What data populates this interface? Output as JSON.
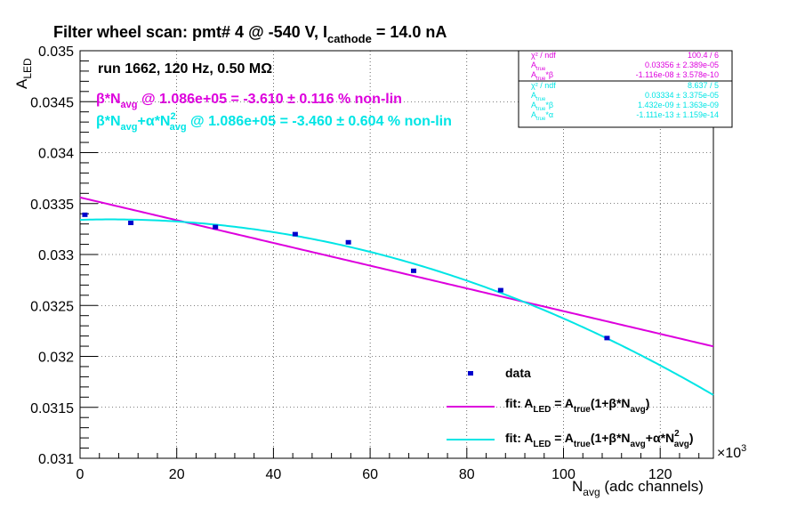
{
  "chart_data": {
    "type": "scatter",
    "title": {
      "main": "Filter wheel scan: pmt#   4 @  -540 V, I",
      "sub": "cathode",
      "tail": " = 14.0 nA"
    },
    "run_label": "run 1662, 120 Hz, 0.50 MΩ",
    "ylabel": {
      "main": "A",
      "sub": "LED"
    },
    "xlabel": {
      "main": "N",
      "sub": "avg",
      "tail": " (adc channels)"
    },
    "x_multiplier": {
      "main": "×10",
      "sup": "3"
    },
    "xlim": [
      0,
      131000
    ],
    "ylim": [
      0.031,
      0.035
    ],
    "x_ticks": [
      0,
      20,
      40,
      60,
      80,
      100,
      120
    ],
    "y_ticks": [
      "0.031",
      "0.0315",
      "0.032",
      "0.0325",
      "0.033",
      "0.0335",
      "0.034",
      "0.0345",
      "0.035"
    ],
    "grid": true,
    "points": {
      "name": "data",
      "color": "#0000cc",
      "x": [
        1000,
        10500,
        28000,
        44500,
        55500,
        69000,
        87000,
        109000
      ],
      "y": [
        0.03339,
        0.03331,
        0.03327,
        0.0332,
        0.03312,
        0.03284,
        0.03265,
        0.03218
      ],
      "err": [
        9e-06,
        6e-06,
        6e-06,
        6e-06,
        6e-06,
        6e-06,
        5e-06,
        6e-06
      ]
    },
    "fit_linear": {
      "color": "#dd00dd",
      "a": 0.03356,
      "b": -1.116e-08
    },
    "fit_quadratic": {
      "color": "#00e5e5",
      "a": 0.03334,
      "b": 1.432e-09,
      "c": -1.111e-13
    },
    "annotation_linear": {
      "p1": "β*N",
      "s1": "avg",
      "p2": " @ 1.086e+05 = -3.610 ± 0.116 % non-lin"
    },
    "annotation_quadratic": {
      "p1": "β*N",
      "s1": "avg",
      "p2": "+α*N",
      "sup": "2",
      "s2": "avg",
      "p3": " @ 1.086e+05 = -3.460 ± 0.604 % non-lin"
    },
    "stats_linear": [
      {
        "label": "χ² / ndf",
        "value": "100.4 / 6"
      },
      {
        "label": "A",
        "sub": "true",
        "value": "0.03356 ± 2.389e-05"
      },
      {
        "label": "A",
        "sub": "true",
        "tail": "*β",
        "value": "-1.116e-08 ± 3.578e-10"
      }
    ],
    "stats_quadratic": [
      {
        "label": "χ² / ndf",
        "value": "8.637 / 5"
      },
      {
        "label": "A",
        "sub": "true",
        "value": "0.03334 ± 3.375e-05"
      },
      {
        "label": "A",
        "sub": "true",
        "tail": "*β",
        "value": "1.432e-09 ± 1.363e-09"
      },
      {
        "label": "A",
        "sub": "true",
        "tail": "*α",
        "value": "-1.111e-13 ± 1.159e-14"
      }
    ],
    "legend": {
      "placement": "bottom-right",
      "data": "data",
      "linear": {
        "p1": "fit: A",
        "s1": "LED",
        "p2": " = A",
        "s2": "true",
        "p3": "(1+β*N",
        "s3": "avg",
        "p4": ")"
      },
      "quadratic": {
        "p1": "fit: A",
        "s1": "LED",
        "p2": " = A",
        "s2": "true",
        "p3": "(1+β*N",
        "s3": "avg",
        "p4": "+α*N",
        "sup": "2",
        "s4": "avg",
        "p5": ")"
      }
    }
  }
}
